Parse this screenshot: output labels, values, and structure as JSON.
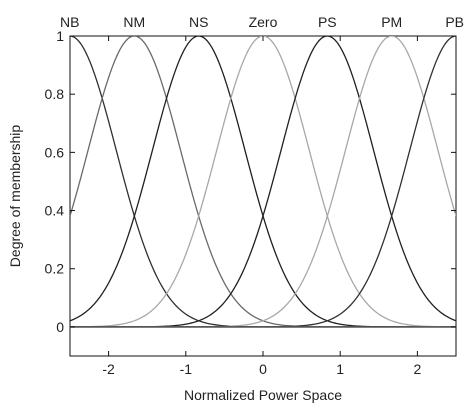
{
  "chart_data": {
    "type": "line",
    "title": "",
    "xlabel": "Normalized Power Space",
    "ylabel": "Degree of membership",
    "xlim": [
      -2.5,
      2.5
    ],
    "ylim": [
      -0.1,
      1.0
    ],
    "x_ticks": [
      -2,
      -1,
      0,
      1,
      2
    ],
    "x_tick_labels": [
      "-2",
      "-1",
      "0",
      "1",
      "2"
    ],
    "y_ticks": [
      0,
      0.2,
      0.4,
      0.6,
      0.8,
      1
    ],
    "y_tick_labels": [
      "0",
      "0.2",
      "0.4",
      "0.6",
      "0.8",
      "1"
    ],
    "grid": false,
    "baseline_y": 0,
    "membership_functions": [
      {
        "label": "NB",
        "shape": "gaussian",
        "center": -2.5,
        "sigma": 0.6,
        "color": "#303030"
      },
      {
        "label": "NM",
        "shape": "gaussian",
        "center": -1.667,
        "sigma": 0.6,
        "color": "#6a6a6a"
      },
      {
        "label": "NS",
        "shape": "gaussian",
        "center": -0.833,
        "sigma": 0.6,
        "color": "#202020"
      },
      {
        "label": "Zero",
        "shape": "gaussian",
        "center": 0,
        "sigma": 0.6,
        "color": "#a8a8a8"
      },
      {
        "label": "PS",
        "shape": "gaussian",
        "center": 0.833,
        "sigma": 0.6,
        "color": "#202020"
      },
      {
        "label": "PM",
        "shape": "gaussian",
        "center": 1.667,
        "sigma": 0.6,
        "color": "#a8a8a8"
      },
      {
        "label": "PB",
        "shape": "gaussian",
        "center": 2.5,
        "sigma": 0.6,
        "color": "#303030"
      }
    ]
  }
}
